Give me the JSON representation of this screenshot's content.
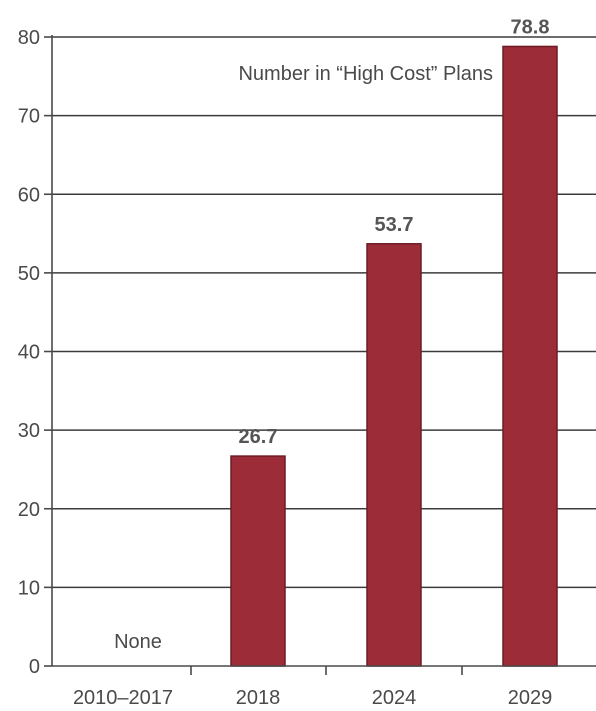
{
  "chart_data": {
    "type": "bar",
    "categories": [
      "2010–2017",
      "2018",
      "2024",
      "2029"
    ],
    "values": [
      0,
      26.7,
      53.7,
      78.8
    ],
    "data_labels": [
      "",
      "26.7",
      "53.7",
      "78.8"
    ],
    "none_label": "None",
    "annotation": "Number in “High Cost” Plans",
    "yticks": [
      "0",
      "10",
      "20",
      "30",
      "40",
      "50",
      "60",
      "70",
      "80"
    ],
    "ylim": [
      0,
      80
    ],
    "grid": true,
    "bar_color": "#9b2c38",
    "bar_edge_color": "#6e1c26",
    "axis_color": "#4a4a4a"
  }
}
